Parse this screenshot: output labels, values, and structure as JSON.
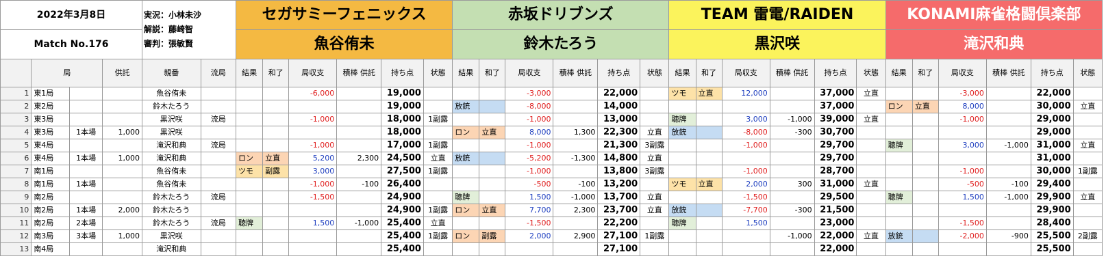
{
  "header": {
    "date": "2022年3月8日",
    "match": "Match No.176",
    "commentary": "実況：小林未沙",
    "analysis": "解説：藤崎智",
    "referee": "審判：張敏賢"
  },
  "colors": {
    "team1": "#f4b942",
    "team2": "#c4dfb2",
    "team3": "#fbf35c",
    "team4": "#f56b6b",
    "tsumo": "#fde2a8",
    "ron": "#fcd5b4",
    "houju": "#c5dcf3",
    "tenpai": "#e2efd9",
    "negative": "#e02020",
    "positive": "#2040c0"
  },
  "teams": [
    {
      "name": "セガサミーフェニックス",
      "player": "魚谷侑未"
    },
    {
      "name": "赤坂ドリブンズ",
      "player": "鈴木たろう"
    },
    {
      "name": "TEAM 雷電/RAIDEN",
      "player": "黒沢咲"
    },
    {
      "name": "KONAMI麻雀格闘倶楽部",
      "player": "滝沢和典"
    }
  ],
  "columns": {
    "kyoku": "局",
    "kyotaku": "供託",
    "oya": "親番",
    "ryukyoku": "流局",
    "result": "結果",
    "agari": "和了",
    "balance": "局収支",
    "deposit": "積棒\n供託",
    "points": "持ち点",
    "status": "状態"
  },
  "rows": [
    {
      "n": "1",
      "kyoku": "東1局",
      "honba": "",
      "kyotaku": "",
      "oya": "魚谷侑未",
      "ryukyoku": "",
      "p": [
        {
          "res": "",
          "ag": "",
          "bal": "-6,000",
          "dep": "",
          "pts": "19,000",
          "st": ""
        },
        {
          "res": "",
          "ag": "",
          "bal": "-3,000",
          "dep": "",
          "pts": "22,000",
          "st": ""
        },
        {
          "res": "ツモ",
          "ag": "立直",
          "bal": "12,000",
          "dep": "",
          "pts": "37,000",
          "st": "立直"
        },
        {
          "res": "",
          "ag": "",
          "bal": "-3,000",
          "dep": "",
          "pts": "22,000",
          "st": ""
        }
      ]
    },
    {
      "n": "2",
      "kyoku": "東2局",
      "honba": "",
      "kyotaku": "",
      "oya": "鈴木たろう",
      "ryukyoku": "",
      "p": [
        {
          "res": "",
          "ag": "",
          "bal": "",
          "dep": "",
          "pts": "19,000",
          "st": ""
        },
        {
          "res": "放銃",
          "ag": "",
          "bal": "-8,000",
          "dep": "",
          "pts": "14,000",
          "st": ""
        },
        {
          "res": "",
          "ag": "",
          "bal": "",
          "dep": "",
          "pts": "37,000",
          "st": ""
        },
        {
          "res": "ロン",
          "ag": "立直",
          "bal": "8,000",
          "dep": "",
          "pts": "30,000",
          "st": "立直"
        }
      ]
    },
    {
      "n": "3",
      "kyoku": "東3局",
      "honba": "",
      "kyotaku": "",
      "oya": "黒沢咲",
      "ryukyoku": "流局",
      "p": [
        {
          "res": "",
          "ag": "",
          "bal": "-1,000",
          "dep": "",
          "pts": "18,000",
          "st": "1副露"
        },
        {
          "res": "",
          "ag": "",
          "bal": "-1,000",
          "dep": "",
          "pts": "13,000",
          "st": ""
        },
        {
          "res": "聴牌",
          "ag": "",
          "bal": "3,000",
          "dep": "-1,000",
          "pts": "39,000",
          "st": "立直"
        },
        {
          "res": "",
          "ag": "",
          "bal": "-1,000",
          "dep": "",
          "pts": "29,000",
          "st": ""
        }
      ]
    },
    {
      "n": "4",
      "kyoku": "東3局",
      "honba": "1本場",
      "kyotaku": "1,000",
      "oya": "黒沢咲",
      "ryukyoku": "",
      "p": [
        {
          "res": "",
          "ag": "",
          "bal": "",
          "dep": "",
          "pts": "18,000",
          "st": ""
        },
        {
          "res": "ロン",
          "ag": "立直",
          "bal": "8,000",
          "dep": "1,300",
          "pts": "22,300",
          "st": "立直"
        },
        {
          "res": "放銃",
          "ag": "",
          "bal": "-8,000",
          "dep": "-300",
          "pts": "30,700",
          "st": ""
        },
        {
          "res": "",
          "ag": "",
          "bal": "",
          "dep": "",
          "pts": "29,000",
          "st": ""
        }
      ]
    },
    {
      "n": "5",
      "kyoku": "東4局",
      "honba": "",
      "kyotaku": "",
      "oya": "滝沢和典",
      "ryukyoku": "流局",
      "p": [
        {
          "res": "",
          "ag": "",
          "bal": "-1,000",
          "dep": "",
          "pts": "17,000",
          "st": "1副露"
        },
        {
          "res": "",
          "ag": "",
          "bal": "-1,000",
          "dep": "",
          "pts": "21,300",
          "st": "3副露"
        },
        {
          "res": "",
          "ag": "",
          "bal": "-1,000",
          "dep": "",
          "pts": "29,700",
          "st": ""
        },
        {
          "res": "聴牌",
          "ag": "",
          "bal": "3,000",
          "dep": "-1,000",
          "pts": "31,000",
          "st": "立直"
        }
      ]
    },
    {
      "n": "6",
      "kyoku": "東4局",
      "honba": "1本場",
      "kyotaku": "1,000",
      "oya": "滝沢和典",
      "ryukyoku": "",
      "p": [
        {
          "res": "ロン",
          "ag": "立直",
          "bal": "5,200",
          "dep": "2,300",
          "pts": "24,500",
          "st": "立直"
        },
        {
          "res": "放銃",
          "ag": "",
          "bal": "-5,200",
          "dep": "-1,300",
          "pts": "14,800",
          "st": "立直"
        },
        {
          "res": "",
          "ag": "",
          "bal": "",
          "dep": "",
          "pts": "29,700",
          "st": ""
        },
        {
          "res": "",
          "ag": "",
          "bal": "",
          "dep": "",
          "pts": "31,000",
          "st": ""
        }
      ]
    },
    {
      "n": "7",
      "kyoku": "南1局",
      "honba": "",
      "kyotaku": "",
      "oya": "魚谷侑未",
      "ryukyoku": "",
      "p": [
        {
          "res": "ツモ",
          "ag": "副露",
          "bal": "3,000",
          "dep": "",
          "pts": "27,500",
          "st": "1副露"
        },
        {
          "res": "",
          "ag": "",
          "bal": "-1,000",
          "dep": "",
          "pts": "13,800",
          "st": "3副露"
        },
        {
          "res": "",
          "ag": "",
          "bal": "-1,000",
          "dep": "",
          "pts": "28,700",
          "st": ""
        },
        {
          "res": "",
          "ag": "",
          "bal": "-1,000",
          "dep": "",
          "pts": "30,000",
          "st": "1副露"
        }
      ]
    },
    {
      "n": "8",
      "kyoku": "南1局",
      "honba": "1本場",
      "kyotaku": "",
      "oya": "魚谷侑未",
      "ryukyoku": "",
      "p": [
        {
          "res": "",
          "ag": "",
          "bal": "-1,000",
          "dep": "-100",
          "pts": "26,400",
          "st": ""
        },
        {
          "res": "",
          "ag": "",
          "bal": "-500",
          "dep": "-100",
          "pts": "13,200",
          "st": ""
        },
        {
          "res": "ツモ",
          "ag": "立直",
          "bal": "2,000",
          "dep": "300",
          "pts": "31,000",
          "st": "立直"
        },
        {
          "res": "",
          "ag": "",
          "bal": "-500",
          "dep": "-100",
          "pts": "29,400",
          "st": ""
        }
      ]
    },
    {
      "n": "9",
      "kyoku": "南2局",
      "honba": "",
      "kyotaku": "",
      "oya": "鈴木たろう",
      "ryukyoku": "流局",
      "p": [
        {
          "res": "",
          "ag": "",
          "bal": "-1,500",
          "dep": "",
          "pts": "24,900",
          "st": ""
        },
        {
          "res": "聴牌",
          "ag": "",
          "bal": "1,500",
          "dep": "-1,000",
          "pts": "13,700",
          "st": "立直"
        },
        {
          "res": "",
          "ag": "",
          "bal": "-1,500",
          "dep": "",
          "pts": "29,500",
          "st": ""
        },
        {
          "res": "聴牌",
          "ag": "",
          "bal": "1,500",
          "dep": "-1,000",
          "pts": "29,900",
          "st": "立直"
        }
      ]
    },
    {
      "n": "10",
      "kyoku": "南2局",
      "honba": "1本場",
      "kyotaku": "2,000",
      "oya": "鈴木たろう",
      "ryukyoku": "",
      "p": [
        {
          "res": "",
          "ag": "",
          "bal": "",
          "dep": "",
          "pts": "24,900",
          "st": "1副露"
        },
        {
          "res": "ロン",
          "ag": "立直",
          "bal": "7,700",
          "dep": "2,300",
          "pts": "23,700",
          "st": "立直"
        },
        {
          "res": "放銃",
          "ag": "",
          "bal": "-7,700",
          "dep": "-300",
          "pts": "21,500",
          "st": ""
        },
        {
          "res": "",
          "ag": "",
          "bal": "",
          "dep": "",
          "pts": "29,900",
          "st": ""
        }
      ]
    },
    {
      "n": "11",
      "kyoku": "南2局",
      "honba": "2本場",
      "kyotaku": "",
      "oya": "鈴木たろう",
      "ryukyoku": "流局",
      "p": [
        {
          "res": "聴牌",
          "ag": "",
          "bal": "1,500",
          "dep": "-1,000",
          "pts": "25,400",
          "st": "立直"
        },
        {
          "res": "",
          "ag": "",
          "bal": "-1,500",
          "dep": "",
          "pts": "22,200",
          "st": ""
        },
        {
          "res": "聴牌",
          "ag": "",
          "bal": "1,500",
          "dep": "",
          "pts": "23,000",
          "st": ""
        },
        {
          "res": "",
          "ag": "",
          "bal": "-1,500",
          "dep": "",
          "pts": "28,400",
          "st": ""
        }
      ]
    },
    {
      "n": "12",
      "kyoku": "南3局",
      "honba": "3本場",
      "kyotaku": "1,000",
      "oya": "黒沢咲",
      "ryukyoku": "",
      "p": [
        {
          "res": "",
          "ag": "",
          "bal": "",
          "dep": "",
          "pts": "25,400",
          "st": "1副露"
        },
        {
          "res": "ロン",
          "ag": "副露",
          "bal": "2,000",
          "dep": "2,900",
          "pts": "27,100",
          "st": "1副露"
        },
        {
          "res": "",
          "ag": "",
          "bal": "",
          "dep": "-1,000",
          "pts": "22,000",
          "st": "立直"
        },
        {
          "res": "放銃",
          "ag": "",
          "bal": "-2,000",
          "dep": "-900",
          "pts": "25,500",
          "st": "2副露"
        }
      ]
    },
    {
      "n": "13",
      "kyoku": "南4局",
      "honba": "",
      "kyotaku": "",
      "oya": "滝沢和典",
      "ryukyoku": "",
      "p": [
        {
          "res": "",
          "ag": "",
          "bal": "",
          "dep": "",
          "pts": "25,400",
          "st": ""
        },
        {
          "res": "",
          "ag": "",
          "bal": "",
          "dep": "",
          "pts": "27,100",
          "st": ""
        },
        {
          "res": "",
          "ag": "",
          "bal": "",
          "dep": "",
          "pts": "22,000",
          "st": ""
        },
        {
          "res": "",
          "ag": "",
          "bal": "",
          "dep": "",
          "pts": "25,500",
          "st": ""
        }
      ]
    }
  ]
}
